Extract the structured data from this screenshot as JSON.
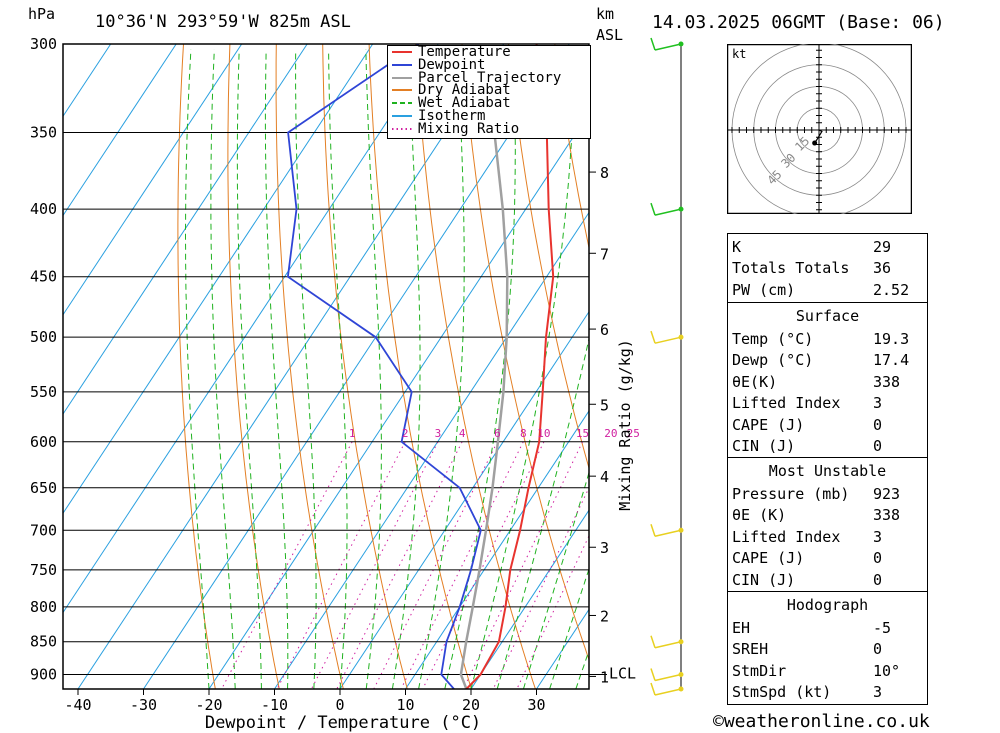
{
  "header": {
    "unit_left": "hPa",
    "location": "10°36'N 293°59'W 825m ASL",
    "unit_km": "km",
    "unit_asl": "ASL",
    "datetime": "14.03.2025 06GMT (Base: 06)"
  },
  "legend": [
    "Temperature",
    "Dewpoint",
    "Parcel Trajectory",
    "Dry Adiabat",
    "Wet Adiabat",
    "Isotherm",
    "Mixing Ratio"
  ],
  "colors": {
    "temperature": "#e8332e",
    "dewpoint": "#2f45d6",
    "parcel": "#a0a0a0",
    "dry_adiabat": "#e37f24",
    "wet_adiabat": "#1fb21f",
    "isotherm": "#2aa0e0",
    "mixing_ratio": "#d020a0",
    "wind": "#e8d020",
    "wind_dot": "#20c020"
  },
  "chart_data": {
    "type": "skew-t",
    "xlabel": "Dewpoint / Temperature (°C)",
    "ylabel_right": "Mixing Ratio (g/kg)",
    "x_ticks": [
      -40,
      -30,
      -20,
      -10,
      0,
      10,
      20,
      30
    ],
    "pressure_ticks": [
      300,
      350,
      400,
      450,
      500,
      550,
      600,
      650,
      700,
      750,
      800,
      850,
      900
    ],
    "km_ticks": [
      {
        "km": "8",
        "p": 375
      },
      {
        "km": "7",
        "p": 432
      },
      {
        "km": "6",
        "p": 493
      },
      {
        "km": "5",
        "p": 562
      },
      {
        "km": "4",
        "p": 637
      },
      {
        "km": "3",
        "p": 721
      },
      {
        "km": "2",
        "p": 812
      },
      {
        "km": "1",
        "p": 903
      }
    ],
    "lcl_label": "LCL",
    "lcl_pressure": 900,
    "mixing_ratio_labels": [
      "1",
      "2",
      "3",
      "4",
      "6",
      "8",
      "10",
      "15",
      "20",
      "25"
    ],
    "mixing_ratio_values": [
      1,
      2,
      3,
      4,
      6,
      8,
      10,
      15,
      20,
      25
    ],
    "temperature": [
      {
        "p": 923,
        "t": 19.3
      },
      {
        "p": 900,
        "t": 20
      },
      {
        "p": 850,
        "t": 19.5
      },
      {
        "p": 800,
        "t": 17
      },
      {
        "p": 750,
        "t": 14
      },
      {
        "p": 700,
        "t": 11.5
      },
      {
        "p": 650,
        "t": 8.5
      },
      {
        "p": 600,
        "t": 5.5
      },
      {
        "p": 550,
        "t": 1
      },
      {
        "p": 500,
        "t": -4
      },
      {
        "p": 450,
        "t": -9
      },
      {
        "p": 400,
        "t": -16.5
      },
      {
        "p": 350,
        "t": -24.5
      },
      {
        "p": 300,
        "t": -35
      }
    ],
    "dewpoint": [
      {
        "p": 923,
        "t": 17.4
      },
      {
        "p": 900,
        "t": 14
      },
      {
        "p": 850,
        "t": 11.5
      },
      {
        "p": 800,
        "t": 10
      },
      {
        "p": 750,
        "t": 8
      },
      {
        "p": 700,
        "t": 5.5
      },
      {
        "p": 650,
        "t": -2
      },
      {
        "p": 600,
        "t": -15.5
      },
      {
        "p": 550,
        "t": -19
      },
      {
        "p": 500,
        "t": -30
      },
      {
        "p": 450,
        "t": -49.5
      },
      {
        "p": 400,
        "t": -55
      },
      {
        "p": 350,
        "t": -64
      },
      {
        "p": 300,
        "t": -53
      }
    ],
    "parcel": [
      {
        "p": 923,
        "t": 19.3
      },
      {
        "p": 900,
        "t": 17
      },
      {
        "p": 850,
        "t": 14.5
      },
      {
        "p": 800,
        "t": 12
      },
      {
        "p": 750,
        "t": 9.3
      },
      {
        "p": 700,
        "t": 6.3
      },
      {
        "p": 650,
        "t": 3
      },
      {
        "p": 600,
        "t": -0.8
      },
      {
        "p": 550,
        "t": -5
      },
      {
        "p": 500,
        "t": -10
      },
      {
        "p": 450,
        "t": -16
      },
      {
        "p": 400,
        "t": -23.5
      },
      {
        "p": 350,
        "t": -32.5
      },
      {
        "p": 320,
        "t": -38.5
      }
    ],
    "wind_barbs": [
      {
        "p": 300,
        "dot": "green"
      },
      {
        "p": 400,
        "dot": "green"
      },
      {
        "p": 500,
        "dot": "yellow"
      },
      {
        "p": 700,
        "dot": "yellow"
      },
      {
        "p": 850,
        "dot": "yellow"
      },
      {
        "p": 900,
        "dot": "yellow"
      },
      {
        "p": 923,
        "dot": "yellow"
      }
    ],
    "hodograph_unit": "kt",
    "hodograph_ring_labels": [
      "15",
      "30",
      "45"
    ],
    "hodograph": [
      [
        0,
        0
      ],
      [
        2,
        -1
      ],
      [
        -1,
        -6
      ],
      [
        -3,
        -9
      ]
    ]
  },
  "indices": {
    "top": [
      {
        "label": "K",
        "value": "29"
      },
      {
        "label": "Totals Totals",
        "value": "36"
      },
      {
        "label": "PW (cm)",
        "value": "2.52"
      }
    ],
    "surface": {
      "title": "Surface",
      "rows": [
        {
          "label": "Temp (°C)",
          "value": "19.3"
        },
        {
          "label": "Dewp (°C)",
          "value": "17.4"
        },
        {
          "label": "θE(K)",
          "value": "338"
        },
        {
          "label": "Lifted Index",
          "value": "3"
        },
        {
          "label": "CAPE (J)",
          "value": "0"
        },
        {
          "label": "CIN (J)",
          "value": "0"
        }
      ]
    },
    "unstable": {
      "title": "Most Unstable",
      "rows": [
        {
          "label": "Pressure (mb)",
          "value": "923"
        },
        {
          "label": "θE (K)",
          "value": "338"
        },
        {
          "label": "Lifted Index",
          "value": "3"
        },
        {
          "label": "CAPE (J)",
          "value": "0"
        },
        {
          "label": "CIN (J)",
          "value": "0"
        }
      ]
    },
    "hodograph": {
      "title": "Hodograph",
      "rows": [
        {
          "label": "EH",
          "value": "-5"
        },
        {
          "label": "SREH",
          "value": "0"
        },
        {
          "label": "StmDir",
          "value": "10°"
        },
        {
          "label": "StmSpd (kt)",
          "value": "3"
        }
      ]
    }
  },
  "footer": "©weatheronline.co.uk"
}
